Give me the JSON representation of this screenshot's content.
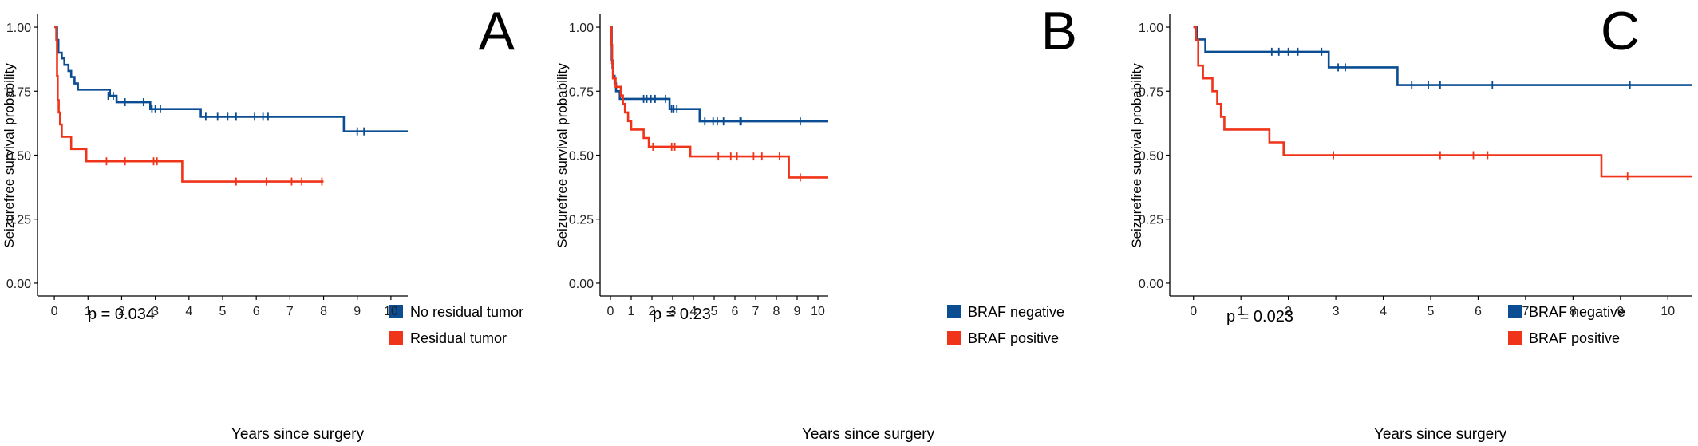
{
  "chart_data": [
    {
      "type": "line",
      "panel_label": "A",
      "xlabel": "Years since surgery",
      "ylabel": "Seizurefree survival probability",
      "xlim": [
        -0.5,
        10.5
      ],
      "ylim": [
        -0.05,
        1.05
      ],
      "x_ticks": [
        0,
        1,
        2,
        3,
        4,
        5,
        6,
        7,
        8,
        9,
        10
      ],
      "y_ticks": [
        0.0,
        0.25,
        0.5,
        0.75,
        1.0
      ],
      "y_tick_labels": [
        "0.00",
        "0.25",
        "0.50",
        "0.75",
        "1.00"
      ],
      "pvalue_text": "p = 0.034",
      "legend_position": "bottom-right",
      "series": [
        {
          "name": "No residual tumor",
          "color": "#0b4d92",
          "steps": [
            [
              0.0,
              1.0
            ],
            [
              0.08,
              0.95
            ],
            [
              0.12,
              0.9
            ],
            [
              0.22,
              0.878
            ],
            [
              0.3,
              0.853
            ],
            [
              0.42,
              0.829
            ],
            [
              0.5,
              0.805
            ],
            [
              0.6,
              0.78
            ],
            [
              0.7,
              0.756
            ],
            [
              1.65,
              0.732
            ],
            [
              1.85,
              0.707
            ],
            [
              2.85,
              0.68
            ],
            [
              4.35,
              0.65
            ],
            [
              8.6,
              0.593
            ],
            [
              10.5,
              0.593
            ]
          ],
          "censored": [
            [
              1.6,
              0.732
            ],
            [
              1.75,
              0.732
            ],
            [
              2.1,
              0.707
            ],
            [
              2.65,
              0.707
            ],
            [
              2.9,
              0.68
            ],
            [
              3.0,
              0.68
            ],
            [
              3.15,
              0.68
            ],
            [
              4.5,
              0.65
            ],
            [
              4.85,
              0.65
            ],
            [
              5.15,
              0.65
            ],
            [
              5.4,
              0.65
            ],
            [
              5.95,
              0.65
            ],
            [
              6.2,
              0.65
            ],
            [
              6.35,
              0.65
            ],
            [
              9.0,
              0.593
            ],
            [
              9.2,
              0.593
            ]
          ]
        },
        {
          "name": "Residual tumor",
          "color": "#f0341a",
          "steps": [
            [
              0.0,
              1.0
            ],
            [
              0.06,
              0.95
            ],
            [
              0.08,
              0.81
            ],
            [
              0.1,
              0.715
            ],
            [
              0.13,
              0.667
            ],
            [
              0.17,
              0.62
            ],
            [
              0.22,
              0.572
            ],
            [
              0.5,
              0.524
            ],
            [
              0.95,
              0.476
            ],
            [
              3.8,
              0.397
            ],
            [
              8.0,
              0.397
            ]
          ],
          "censored": [
            [
              1.55,
              0.476
            ],
            [
              2.1,
              0.476
            ],
            [
              2.95,
              0.476
            ],
            [
              3.05,
              0.476
            ],
            [
              5.4,
              0.397
            ],
            [
              6.3,
              0.397
            ],
            [
              7.05,
              0.397
            ],
            [
              7.35,
              0.397
            ],
            [
              7.95,
              0.397
            ]
          ]
        }
      ]
    },
    {
      "type": "line",
      "panel_label": "B",
      "xlabel": "Years since surgery",
      "ylabel": "Seizurefree survival probability",
      "xlim": [
        -0.5,
        10.5
      ],
      "ylim": [
        -0.05,
        1.05
      ],
      "x_ticks": [
        0,
        1,
        2,
        3,
        4,
        5,
        6,
        7,
        8,
        9,
        10
      ],
      "y_ticks": [
        0.0,
        0.25,
        0.5,
        0.75,
        1.0
      ],
      "y_tick_labels": [
        "0.00",
        "0.25",
        "0.50",
        "0.75",
        "1.00"
      ],
      "pvalue_text": "p = 0.23",
      "legend_position": "bottom-right",
      "series": [
        {
          "name": "BRAF negative",
          "color": "#0b4d92",
          "steps": [
            [
              0.0,
              1.0
            ],
            [
              0.06,
              0.87
            ],
            [
              0.1,
              0.84
            ],
            [
              0.14,
              0.81
            ],
            [
              0.2,
              0.78
            ],
            [
              0.27,
              0.75
            ],
            [
              0.45,
              0.72
            ],
            [
              2.85,
              0.68
            ],
            [
              4.3,
              0.632
            ],
            [
              10.5,
              0.632
            ]
          ],
          "censored": [
            [
              1.6,
              0.72
            ],
            [
              1.75,
              0.72
            ],
            [
              1.95,
              0.72
            ],
            [
              2.15,
              0.72
            ],
            [
              2.65,
              0.72
            ],
            [
              2.95,
              0.68
            ],
            [
              3.05,
              0.68
            ],
            [
              3.2,
              0.68
            ],
            [
              4.55,
              0.632
            ],
            [
              4.95,
              0.632
            ],
            [
              5.15,
              0.632
            ],
            [
              5.45,
              0.632
            ],
            [
              6.25,
              0.632
            ],
            [
              6.3,
              0.632
            ],
            [
              9.15,
              0.632
            ]
          ]
        },
        {
          "name": "BRAF positive",
          "color": "#f0341a",
          "steps": [
            [
              0.0,
              1.0
            ],
            [
              0.05,
              0.93
            ],
            [
              0.08,
              0.86
            ],
            [
              0.12,
              0.8
            ],
            [
              0.25,
              0.767
            ],
            [
              0.5,
              0.733
            ],
            [
              0.6,
              0.7
            ],
            [
              0.7,
              0.667
            ],
            [
              0.85,
              0.633
            ],
            [
              1.0,
              0.6
            ],
            [
              1.6,
              0.567
            ],
            [
              1.85,
              0.533
            ],
            [
              3.85,
              0.495
            ],
            [
              8.6,
              0.413
            ],
            [
              10.5,
              0.413
            ]
          ],
          "censored": [
            [
              2.05,
              0.533
            ],
            [
              2.95,
              0.533
            ],
            [
              3.1,
              0.533
            ],
            [
              5.2,
              0.495
            ],
            [
              5.8,
              0.495
            ],
            [
              6.1,
              0.495
            ],
            [
              6.9,
              0.495
            ],
            [
              7.3,
              0.495
            ],
            [
              8.15,
              0.495
            ],
            [
              9.15,
              0.413
            ]
          ]
        }
      ]
    },
    {
      "type": "line",
      "panel_label": "C",
      "xlabel": "Years since surgery",
      "ylabel": "Seizurefree survival probability",
      "xlim": [
        -0.5,
        10.5
      ],
      "ylim": [
        -0.05,
        1.05
      ],
      "x_ticks": [
        0,
        1,
        2,
        3,
        4,
        5,
        6,
        7,
        8,
        9,
        10
      ],
      "y_ticks": [
        0.0,
        0.25,
        0.5,
        0.75,
        1.0
      ],
      "y_tick_labels": [
        "0.00",
        "0.25",
        "0.50",
        "0.75",
        "1.00"
      ],
      "pvalue_text": "p = 0.023",
      "legend_position": "bottom-right",
      "series": [
        {
          "name": "BRAF negative",
          "color": "#0b4d92",
          "steps": [
            [
              0.0,
              1.0
            ],
            [
              0.08,
              0.952
            ],
            [
              0.25,
              0.904
            ],
            [
              2.85,
              0.843
            ],
            [
              4.3,
              0.774
            ],
            [
              10.5,
              0.774
            ]
          ],
          "censored": [
            [
              1.65,
              0.904
            ],
            [
              1.8,
              0.904
            ],
            [
              2.0,
              0.904
            ],
            [
              2.2,
              0.904
            ],
            [
              2.7,
              0.904
            ],
            [
              3.05,
              0.843
            ],
            [
              3.2,
              0.843
            ],
            [
              4.6,
              0.774
            ],
            [
              4.95,
              0.774
            ],
            [
              5.2,
              0.774
            ],
            [
              6.3,
              0.774
            ],
            [
              9.2,
              0.774
            ]
          ]
        },
        {
          "name": "BRAF positive",
          "color": "#f0341a",
          "steps": [
            [
              0.0,
              1.0
            ],
            [
              0.05,
              0.95
            ],
            [
              0.1,
              0.85
            ],
            [
              0.2,
              0.8
            ],
            [
              0.4,
              0.75
            ],
            [
              0.5,
              0.7
            ],
            [
              0.58,
              0.65
            ],
            [
              0.65,
              0.6
            ],
            [
              1.6,
              0.55
            ],
            [
              1.9,
              0.5
            ],
            [
              8.6,
              0.417
            ],
            [
              10.5,
              0.417
            ]
          ],
          "censored": [
            [
              2.95,
              0.5
            ],
            [
              5.2,
              0.5
            ],
            [
              5.9,
              0.5
            ],
            [
              6.2,
              0.5
            ],
            [
              9.15,
              0.417
            ]
          ]
        }
      ]
    }
  ]
}
